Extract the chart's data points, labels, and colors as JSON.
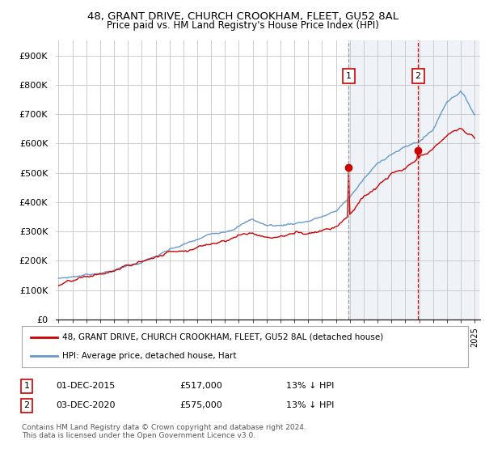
{
  "title": "48, GRANT DRIVE, CHURCH CROOKHAM, FLEET, GU52 8AL",
  "subtitle": "Price paid vs. HM Land Registry's House Price Index (HPI)",
  "ylim": [
    0,
    950000
  ],
  "yticks": [
    0,
    100000,
    200000,
    300000,
    400000,
    500000,
    600000,
    700000,
    800000,
    900000
  ],
  "ytick_labels": [
    "£0",
    "£100K",
    "£200K",
    "£300K",
    "£400K",
    "£500K",
    "£600K",
    "£700K",
    "£800K",
    "£900K"
  ],
  "hpi_color": "#6699cc",
  "price_color": "#cc0000",
  "legend_line1": "48, GRANT DRIVE, CHURCH CROOKHAM, FLEET, GU52 8AL (detached house)",
  "legend_line2": "HPI: Average price, detached house, Hart",
  "table_row1": [
    "1",
    "01-DEC-2015",
    "£517,000",
    "13% ↓ HPI"
  ],
  "table_row2": [
    "2",
    "03-DEC-2020",
    "£575,000",
    "13% ↓ HPI"
  ],
  "footnote": "Contains HM Land Registry data © Crown copyright and database right 2024.\nThis data is licensed under the Open Government Licence v3.0.",
  "bg_color": "#ffffff",
  "grid_color": "#cccccc",
  "shade_color": "#dce6f1"
}
